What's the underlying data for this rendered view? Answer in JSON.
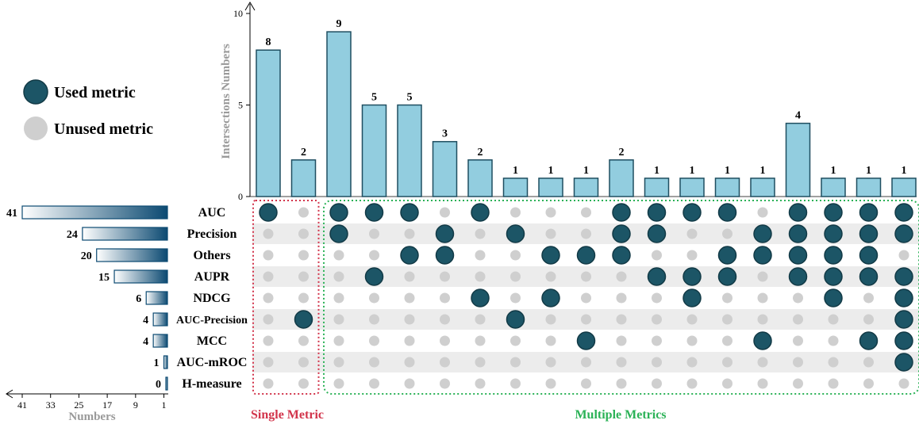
{
  "legend": {
    "used_label": "Used metric",
    "unused_label": "Unused metric"
  },
  "colors": {
    "bar_fill": "#92cddf",
    "bar_stroke": "#1f4e60",
    "dot_used": "#1c5566",
    "dot_unused": "#cfcfcf",
    "row_stripe": "#ececec",
    "set_bar_dark": "#0c4a72",
    "single_box": "#d2344b",
    "multiple_box": "#2bb257",
    "axis_label": "#999999"
  },
  "groups": {
    "single_label": "Single Metric",
    "multiple_label": "Multiple Metrics"
  },
  "chart_data": {
    "type": "upset",
    "ylabel": "Intersections Numbers",
    "ylim": [
      0,
      10
    ],
    "yticks": [
      0,
      5,
      10
    ],
    "sets": [
      "AUC",
      "Precision",
      "Others",
      "AUPR",
      "NDCG",
      "AUC-Precision",
      "MCC",
      "AUC-mROC",
      "H-measure"
    ],
    "set_sizes": [
      41,
      24,
      20,
      15,
      6,
      4,
      4,
      1,
      0
    ],
    "set_size_xlabel": "Numbers",
    "set_size_ticks": [
      41,
      33,
      25,
      17,
      9,
      1
    ],
    "intersection_values": [
      8,
      2,
      9,
      5,
      5,
      3,
      2,
      1,
      1,
      1,
      2,
      1,
      1,
      1,
      1,
      4,
      1,
      1,
      1
    ],
    "membership": [
      [
        1,
        0,
        0,
        0,
        0,
        0,
        0,
        0,
        0
      ],
      [
        0,
        0,
        0,
        0,
        0,
        1,
        0,
        0,
        0
      ],
      [
        1,
        1,
        0,
        0,
        0,
        0,
        0,
        0,
        0
      ],
      [
        1,
        0,
        0,
        1,
        0,
        0,
        0,
        0,
        0
      ],
      [
        1,
        0,
        1,
        0,
        0,
        0,
        0,
        0,
        0
      ],
      [
        0,
        1,
        1,
        0,
        0,
        0,
        0,
        0,
        0
      ],
      [
        1,
        0,
        0,
        0,
        1,
        0,
        0,
        0,
        0
      ],
      [
        0,
        1,
        0,
        0,
        0,
        1,
        0,
        0,
        0
      ],
      [
        0,
        0,
        1,
        0,
        1,
        0,
        0,
        0,
        0
      ],
      [
        0,
        0,
        1,
        0,
        0,
        0,
        1,
        0,
        0
      ],
      [
        1,
        1,
        1,
        0,
        0,
        0,
        0,
        0,
        0
      ],
      [
        1,
        1,
        0,
        1,
        0,
        0,
        0,
        0,
        0
      ],
      [
        1,
        0,
        0,
        1,
        1,
        0,
        0,
        0,
        0
      ],
      [
        1,
        0,
        1,
        1,
        0,
        0,
        0,
        0,
        0
      ],
      [
        0,
        1,
        1,
        0,
        0,
        0,
        1,
        0,
        0
      ],
      [
        1,
        1,
        1,
        1,
        0,
        0,
        0,
        0,
        0
      ],
      [
        1,
        1,
        1,
        1,
        1,
        0,
        0,
        0,
        0
      ],
      [
        1,
        1,
        1,
        1,
        0,
        0,
        1,
        0,
        0
      ],
      [
        1,
        1,
        0,
        1,
        1,
        1,
        1,
        1,
        0
      ]
    ],
    "groups": [
      {
        "name": "Single Metric",
        "columns": [
          0,
          1
        ]
      },
      {
        "name": "Multiple Metrics",
        "columns": [
          2,
          18
        ]
      }
    ]
  }
}
